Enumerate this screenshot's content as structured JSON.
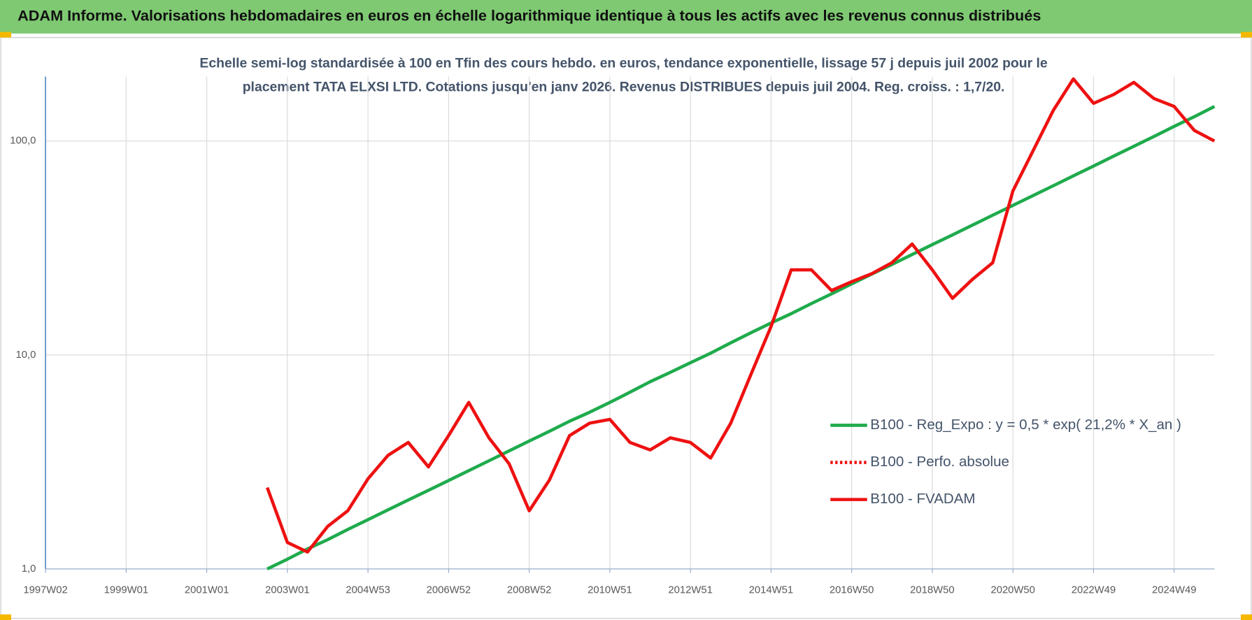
{
  "chart_data": {
    "type": "line",
    "title": "ADAM Informe. Valorisations hebdomadaires en euros en échelle logarithmique identique à tous les actifs avec les revenus connus distribués",
    "subtitle": [
      "Echelle semi-log standardisée à 100 en Tfin des cours hebdo. en euros, tendance exponentielle, lissage 57 j depuis juil 2002 pour le",
      "placement TATA ELXSI LTD. Cotations jusqu'en janv 2026. Revenus DISTRIBUES depuis juil 2004. Reg. croiss. : 1,7/20."
    ],
    "categories": [
      "1997W02",
      null,
      null,
      null,
      "1999W01",
      null,
      null,
      null,
      "2001W01",
      null,
      null,
      null,
      "2003W01",
      null,
      null,
      null,
      "2004W53",
      null,
      null,
      null,
      "2006W52",
      null,
      null,
      null,
      "2008W52",
      null,
      null,
      null,
      "2010W51",
      null,
      null,
      null,
      "2012W51",
      null,
      null,
      null,
      "2014W51",
      null,
      null,
      null,
      "2016W50",
      null,
      null,
      null,
      "2018W50",
      null,
      null,
      null,
      "2020W50",
      null,
      null,
      null,
      "2022W49",
      null,
      null,
      null,
      "2024W49",
      null,
      null
    ],
    "series": [
      {
        "name": "B100 - Reg_Expo : y = 0,5 * exp( 21,2% *  X_an )",
        "color": "#1fab4d",
        "style": "solid",
        "values": [
          null,
          null,
          null,
          null,
          null,
          null,
          null,
          null,
          null,
          null,
          null,
          1.0,
          1.11,
          1.24,
          1.37,
          1.53,
          1.7,
          1.89,
          2.1,
          2.33,
          2.59,
          2.88,
          3.2,
          3.56,
          3.96,
          4.4,
          4.9,
          5.4,
          6.0,
          6.7,
          7.5,
          8.3,
          9.2,
          10.2,
          11.4,
          12.7,
          14.1,
          15.6,
          17.4,
          19.3,
          21.5,
          23.9,
          26.5,
          29.5,
          32.8,
          36.4,
          40.5,
          45,
          50,
          55.6,
          61.8,
          68.7,
          76.4,
          85,
          94.4,
          105,
          117,
          130,
          145
        ]
      },
      {
        "name": "B100 - Perfo. absolue",
        "color": "#ee1111",
        "style": "dotted",
        "values": [
          null,
          null,
          null,
          null,
          null,
          null,
          null,
          null,
          null,
          null,
          null,
          null,
          null,
          null,
          null,
          null,
          null,
          null,
          null,
          null,
          null,
          null,
          null,
          null,
          null,
          null,
          null,
          null,
          null,
          null,
          null,
          null,
          null,
          null,
          null,
          null,
          null,
          null,
          null,
          null,
          null,
          null,
          null,
          null,
          null,
          null,
          null,
          null,
          null,
          null,
          null,
          null,
          null,
          null,
          null,
          null,
          null,
          null,
          null
        ]
      },
      {
        "name": "B100 - FVADAM",
        "color": "#ee1111",
        "style": "solid",
        "values": [
          null,
          null,
          null,
          null,
          null,
          null,
          null,
          null,
          null,
          null,
          null,
          2.4,
          1.33,
          1.2,
          1.58,
          1.87,
          2.64,
          3.4,
          3.9,
          3.0,
          4.2,
          6.0,
          4.1,
          3.1,
          1.87,
          2.6,
          4.2,
          4.8,
          5.0,
          3.9,
          3.6,
          4.1,
          3.9,
          3.3,
          4.8,
          8.1,
          13.6,
          25,
          25,
          20,
          22,
          24,
          27,
          33,
          25,
          18.4,
          22.6,
          27,
          58.5,
          90,
          139,
          195,
          150,
          165,
          188,
          158,
          145,
          112,
          100
        ]
      }
    ],
    "log_scale": true,
    "ylim": [
      1,
      200
    ],
    "yticks": [
      {
        "value": 1,
        "label": "1,0"
      },
      {
        "value": 10,
        "label": "10,0"
      },
      {
        "value": 100,
        "label": "100,0"
      }
    ],
    "grid": true,
    "legend": "right"
  }
}
